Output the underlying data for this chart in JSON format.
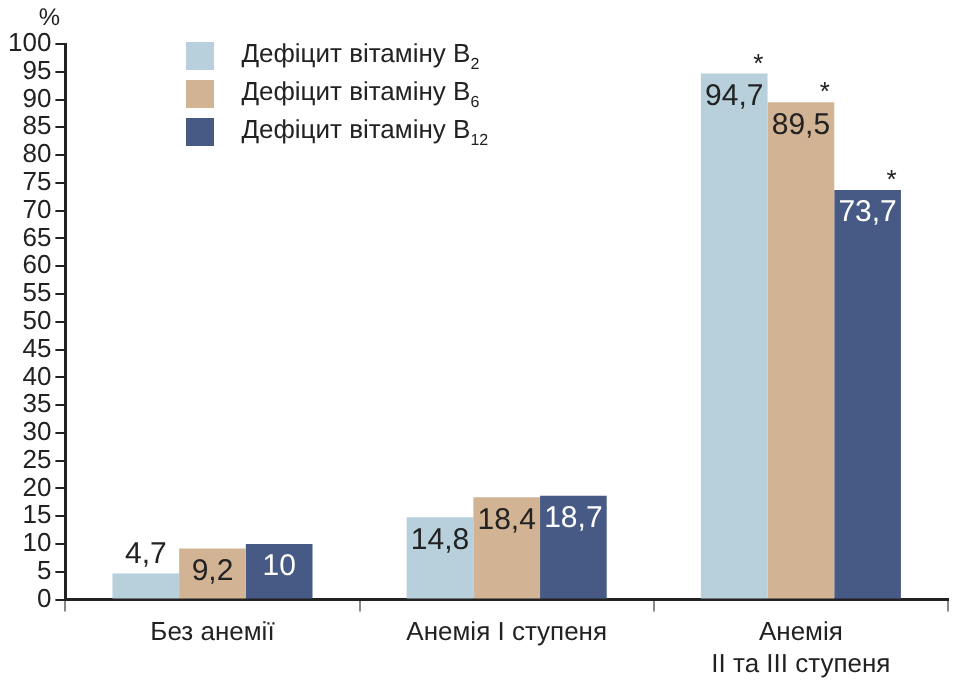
{
  "chart_data": {
    "type": "bar",
    "ylabel": "%",
    "categories": [
      "Без анемії",
      "Анемія I ступеня",
      "Анемія\nII та III ступеня"
    ],
    "series": [
      {
        "name": "Дефіцит вітаміну B$_{2}$",
        "color": "#b7d0dc",
        "values": [
          4.7,
          14.8,
          94.7
        ],
        "value_labels": [
          "4,7",
          "14,8",
          "94,7"
        ]
      },
      {
        "name": "Дефіцит вітаміну B$_{6}$",
        "color": "#d2b394",
        "values": [
          9.2,
          18.4,
          89.5
        ],
        "value_labels": [
          "9,2",
          "18,4",
          "89,5"
        ]
      },
      {
        "name": "Дефіцит вітаміну B$_{12}$",
        "color": "#475a85",
        "values": [
          10,
          18.7,
          73.7
        ],
        "value_labels": [
          "10",
          "18,7",
          "73,7"
        ]
      }
    ],
    "ylim": [
      0,
      100
    ],
    "yticks": [
      0,
      5,
      10,
      15,
      20,
      25,
      30,
      35,
      40,
      45,
      50,
      55,
      60,
      65,
      70,
      75,
      80,
      85,
      90,
      95,
      100
    ],
    "grid": false,
    "legend": "top left",
    "annotations": [
      "*",
      "*",
      "*"
    ]
  }
}
